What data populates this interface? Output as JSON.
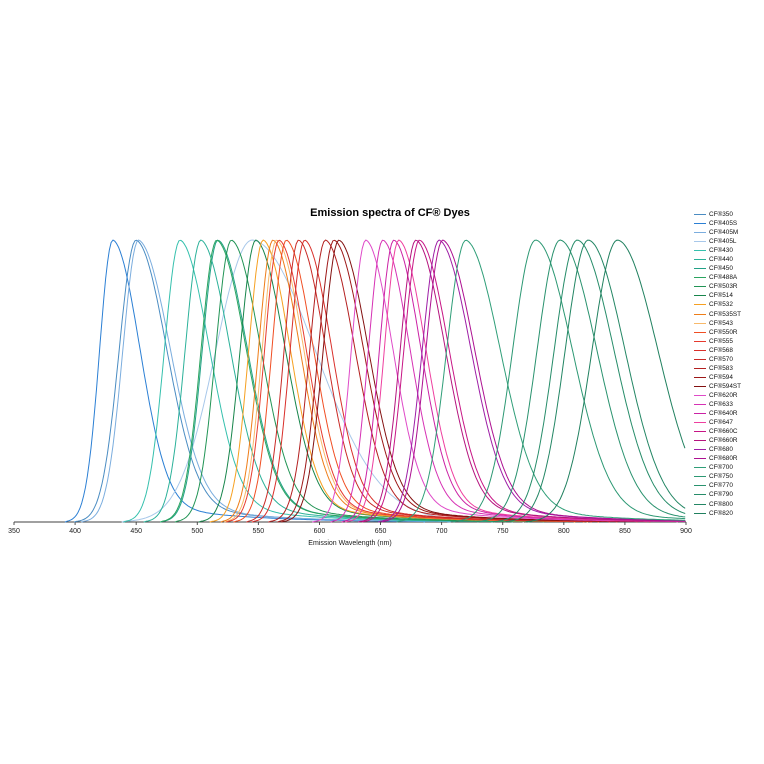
{
  "chart_data": {
    "type": "line",
    "title": "Emission spectra of CF® Dyes",
    "xlabel": "Emission Wavelength (nm)",
    "x_range": [
      350,
      900
    ],
    "x_ticks": [
      350,
      400,
      450,
      500,
      550,
      600,
      650,
      700,
      750,
      800,
      850,
      900
    ],
    "ylim": [
      0,
      1.08
    ],
    "normalized": true,
    "grid": false,
    "legend_position": "right",
    "series": [
      {
        "name": "CF®350",
        "color": "#4a8cc2",
        "peak_nm": 450,
        "sl": 14,
        "sr": 25
      },
      {
        "name": "CF®405S",
        "color": "#2b7fd4",
        "peak_nm": 431,
        "sl": 11,
        "sr": 22
      },
      {
        "name": "CF®405M",
        "color": "#7badde",
        "peak_nm": 452,
        "sl": 13,
        "sr": 26
      },
      {
        "name": "CF®405L",
        "color": "#a8c8ea",
        "peak_nm": 545,
        "sl": 30,
        "sr": 52,
        "tail": 0.03,
        "tau": 80
      },
      {
        "name": "CF®430",
        "color": "#35c0ad",
        "peak_nm": 486,
        "sl": 13,
        "sr": 24
      },
      {
        "name": "CF®440",
        "color": "#2bb199",
        "peak_nm": 503,
        "sl": 13,
        "sr": 24
      },
      {
        "name": "CF®450",
        "color": "#21a186",
        "peak_nm": 517,
        "sl": 13,
        "sr": 24
      },
      {
        "name": "CF®488A",
        "color": "#2aa45f",
        "peak_nm": 516,
        "sl": 13,
        "sr": 24
      },
      {
        "name": "CF®503R",
        "color": "#219455",
        "peak_nm": 528,
        "sl": 13,
        "sr": 24
      },
      {
        "name": "CF®514",
        "color": "#17854b",
        "peak_nm": 548,
        "sl": 13,
        "sr": 24
      },
      {
        "name": "CF®532",
        "color": "#f6a021",
        "peak_nm": 554,
        "sl": 12,
        "sr": 22
      },
      {
        "name": "CF®535ST",
        "color": "#ee7d18",
        "peak_nm": 562,
        "sl": 12,
        "sr": 22
      },
      {
        "name": "CF®543",
        "color": "#f8b96a",
        "peak_nm": 565,
        "sl": 12,
        "sr": 22
      },
      {
        "name": "CF®550R",
        "color": "#f04e23",
        "peak_nm": 573,
        "sl": 12,
        "sr": 22
      },
      {
        "name": "CF®555",
        "color": "#e63a2e",
        "peak_nm": 567,
        "sl": 12,
        "sr": 22
      },
      {
        "name": "CF®568",
        "color": "#d92f2a",
        "peak_nm": 588,
        "sl": 12,
        "sr": 22
      },
      {
        "name": "CF®570",
        "color": "#c92a26",
        "peak_nm": 583,
        "sl": 12,
        "sr": 22
      },
      {
        "name": "CF®583",
        "color": "#b31f1f",
        "peak_nm": 605,
        "sl": 13,
        "sr": 24
      },
      {
        "name": "CF®594",
        "color": "#9d1717",
        "peak_nm": 612,
        "sl": 13,
        "sr": 24
      },
      {
        "name": "CF®594ST",
        "color": "#831010",
        "peak_nm": 616,
        "sl": 13,
        "sr": 24
      },
      {
        "name": "CF®620R",
        "color": "#df4ac8",
        "peak_nm": 638,
        "sl": 12,
        "sr": 22
      },
      {
        "name": "CF®633",
        "color": "#d631b4",
        "peak_nm": 652,
        "sl": 12,
        "sr": 22
      },
      {
        "name": "CF®640R",
        "color": "#cb21a5",
        "peak_nm": 661,
        "sl": 12,
        "sr": 22
      },
      {
        "name": "CF®647",
        "color": "#ee3f9f",
        "peak_nm": 665,
        "sl": 12,
        "sr": 22
      },
      {
        "name": "CF®660C",
        "color": "#c71585",
        "peak_nm": 682,
        "sl": 13,
        "sr": 24
      },
      {
        "name": "CF®660R",
        "color": "#b5137e",
        "peak_nm": 679,
        "sl": 13,
        "sr": 24
      },
      {
        "name": "CF®680",
        "color": "#9e1ea6",
        "peak_nm": 698,
        "sl": 14,
        "sr": 26
      },
      {
        "name": "CF®680R",
        "color": "#ad1091",
        "peak_nm": 701,
        "sl": 14,
        "sr": 26
      },
      {
        "name": "CF®700",
        "color": "#2f9e78",
        "peak_nm": 720,
        "sl": 16,
        "sr": 28
      },
      {
        "name": "CF®750",
        "color": "#2c9873",
        "peak_nm": 777,
        "sl": 19,
        "sr": 30,
        "tail": 0.05,
        "tau": 85
      },
      {
        "name": "CF®770",
        "color": "#29926e",
        "peak_nm": 797,
        "sl": 19,
        "sr": 30,
        "tail": 0.05,
        "tau": 85
      },
      {
        "name": "CF®790",
        "color": "#268c69",
        "peak_nm": 811,
        "sl": 19,
        "sr": 30,
        "tail": 0.05,
        "tau": 85
      },
      {
        "name": "CF®800",
        "color": "#238664",
        "peak_nm": 820,
        "sl": 19,
        "sr": 30,
        "tail": 0.05,
        "tau": 85
      },
      {
        "name": "CF®820",
        "color": "#20805f",
        "peak_nm": 844,
        "sl": 21,
        "sr": 33,
        "tail": 0.05,
        "tau": 85
      }
    ]
  }
}
